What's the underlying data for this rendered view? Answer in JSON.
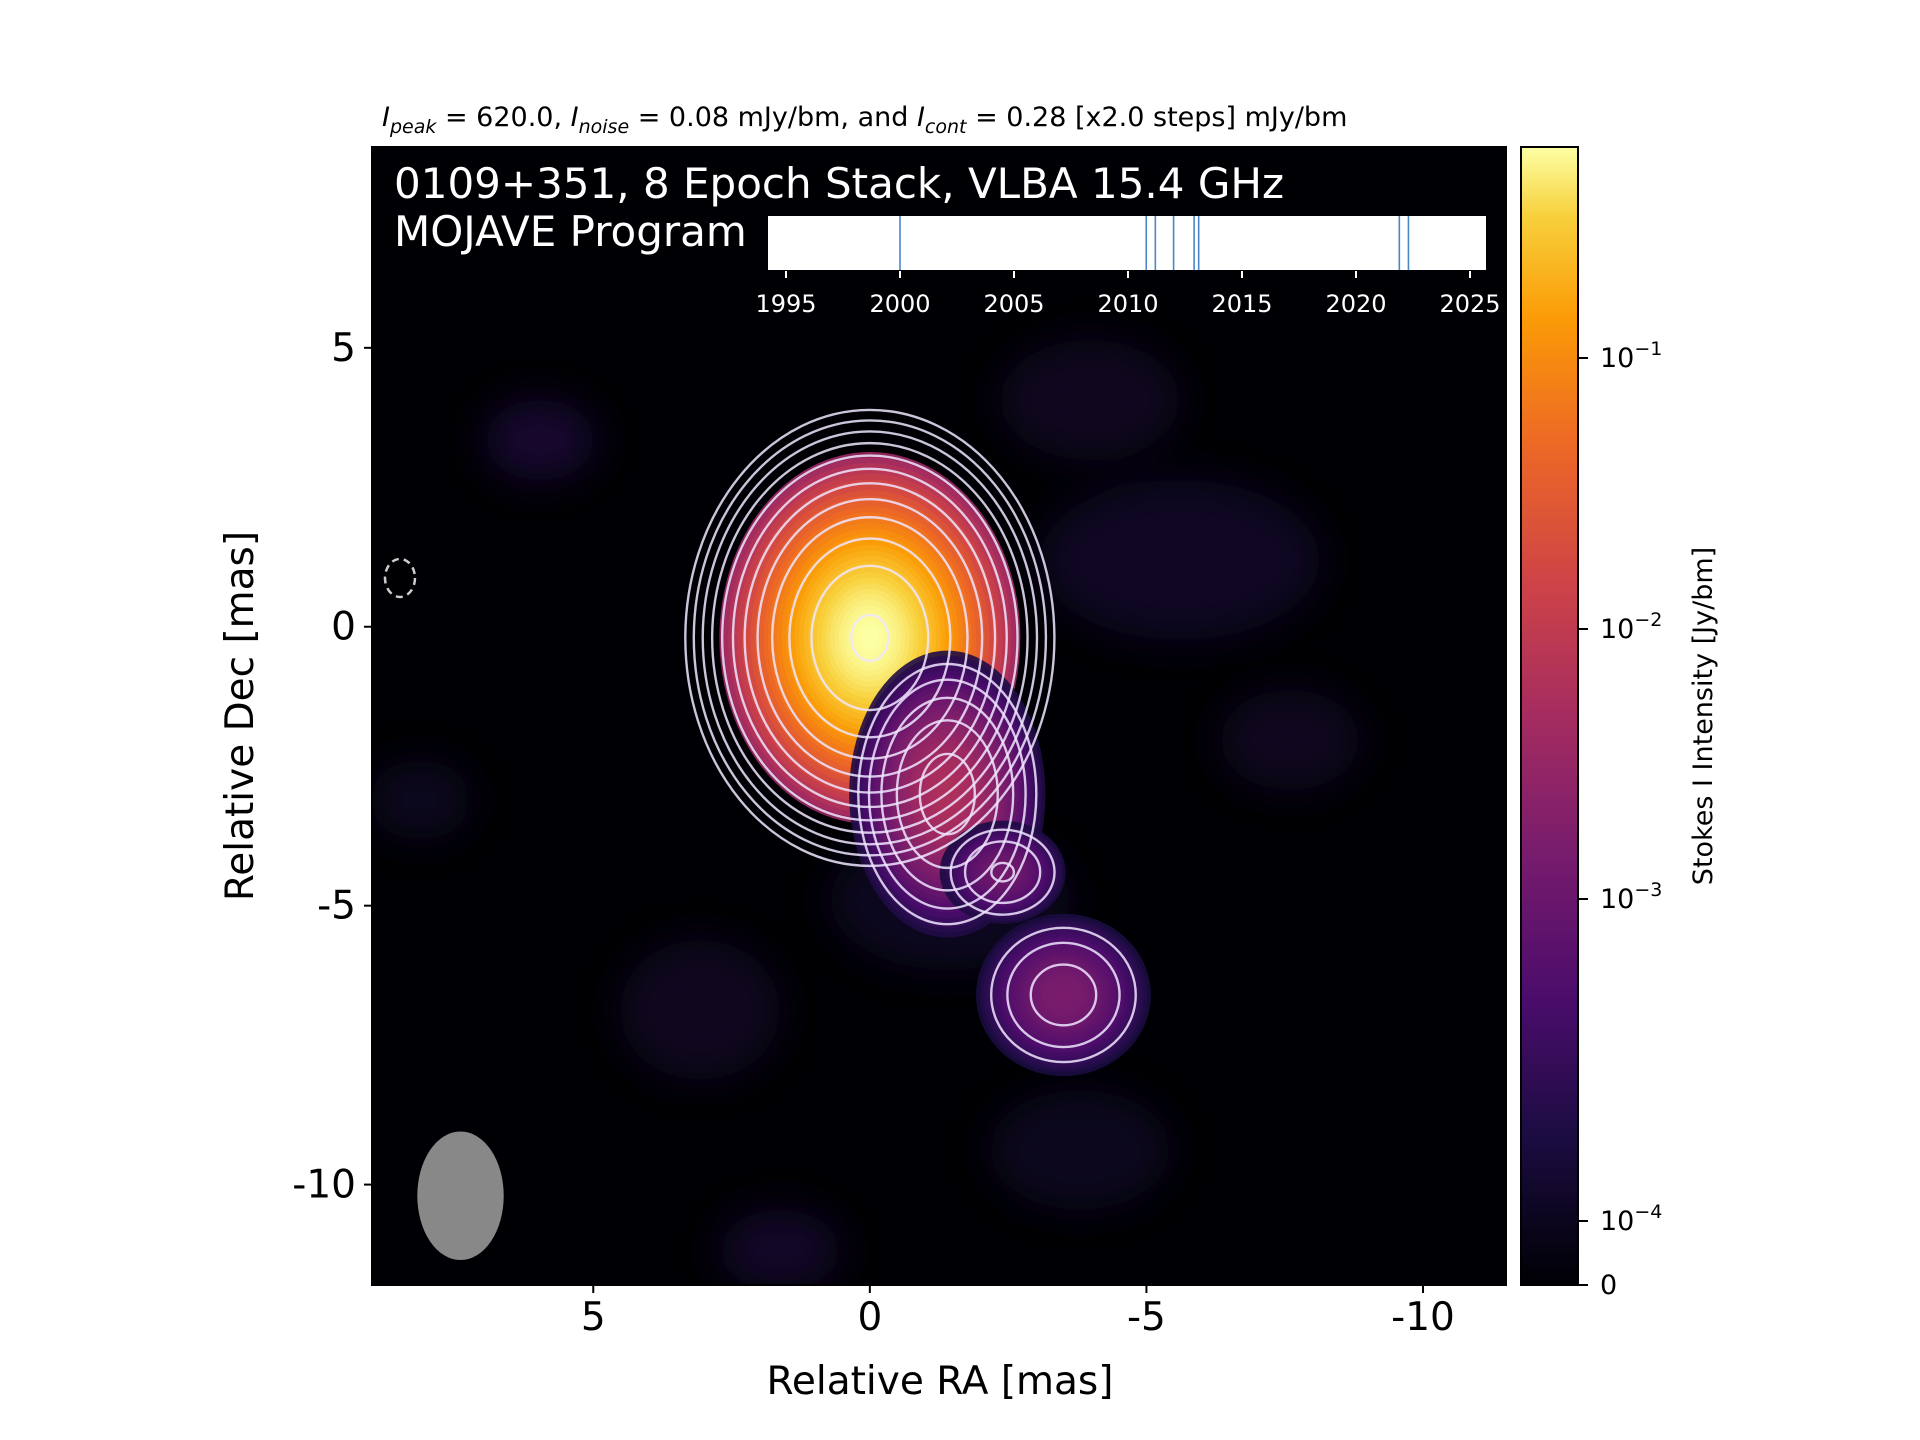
{
  "chart_data": {
    "type": "heatmap",
    "header": {
      "i_peak_sym": "I",
      "i_peak_sub": "peak",
      "i_peak_val": " = 620.0, ",
      "i_noise_sym": "I",
      "i_noise_sub": "noise",
      "i_noise_val": " = 0.08 mJy/bm, and ",
      "i_cont_sym": "I",
      "i_cont_sub": "cont",
      "i_cont_val": " = 0.28 [x2.0 steps] mJy/bm"
    },
    "title_line1": "0109+351, 8 Epoch Stack, VLBA 15.4 GHz",
    "title_line2": "MOJAVE Program",
    "xlabel": "Relative RA [mas]",
    "ylabel": "Relative Dec [mas]",
    "xlim": [
      9.0,
      -11.5
    ],
    "ylim": [
      -11.8,
      8.6
    ],
    "xticks": [
      5,
      0,
      -5,
      -10
    ],
    "xtick_labels": [
      "5",
      "0",
      "-5",
      "-10"
    ],
    "yticks": [
      5,
      0,
      -5,
      -10
    ],
    "ytick_labels": [
      "5",
      "0",
      "-5",
      "-10"
    ],
    "components": [
      {
        "ra": 0.0,
        "dec": -0.2,
        "peak_mJy": 620.0,
        "sigma_ra": 0.85,
        "sigma_dec": 1.05
      },
      {
        "ra": -1.4,
        "dec": -3.0,
        "peak_mJy": 6.0,
        "sigma_ra": 0.65,
        "sigma_dec": 0.95
      },
      {
        "ra": -2.4,
        "dec": -4.4,
        "peak_mJy": 1.2,
        "sigma_ra": 0.55,
        "sigma_dec": 0.45
      },
      {
        "ra": -3.5,
        "dec": -6.6,
        "peak_mJy": 1.6,
        "sigma_ra": 0.7,
        "sigma_dec": 0.65
      }
    ],
    "contour_levels_mJy": [
      0.28,
      0.56,
      1.12,
      2.24,
      4.48,
      8.96,
      17.92,
      35.84,
      71.68,
      143.36,
      286.72,
      573.44
    ],
    "beam": {
      "ra": 7.4,
      "dec": -10.2,
      "major_mas": 1.5,
      "minor_mas": 1.25
    },
    "colorbar": {
      "label": "Stokes I Intensity [Jy/bm]",
      "scale": "log",
      "tick_values": [
        0.1,
        0.01,
        0.001,
        0.0001,
        0
      ],
      "tick_labels": [
        {
          "base": "10",
          "exp": "−1"
        },
        {
          "base": "10",
          "exp": "−2"
        },
        {
          "base": "10",
          "exp": "−3"
        },
        {
          "base": "10",
          "exp": "−4"
        },
        {
          "base": "0",
          "exp": ""
        }
      ],
      "max": 0.62
    },
    "epoch_timeline": {
      "xlim": [
        1993,
        2026
      ],
      "ticks": [
        1995,
        2000,
        2005,
        2010,
        2015,
        2020,
        2025
      ],
      "tick_labels": [
        "1995",
        "2000",
        "2005",
        "2010",
        "2015",
        "2020",
        "2025"
      ],
      "epochs": [
        2000.0,
        2010.8,
        2011.2,
        2012.0,
        2012.9,
        2013.1,
        2021.9,
        2022.3
      ]
    },
    "colors": {
      "contour": "#f0e6ff",
      "beam": "#888888",
      "background": "#000004",
      "epoch_line": "#4a86c8"
    }
  }
}
